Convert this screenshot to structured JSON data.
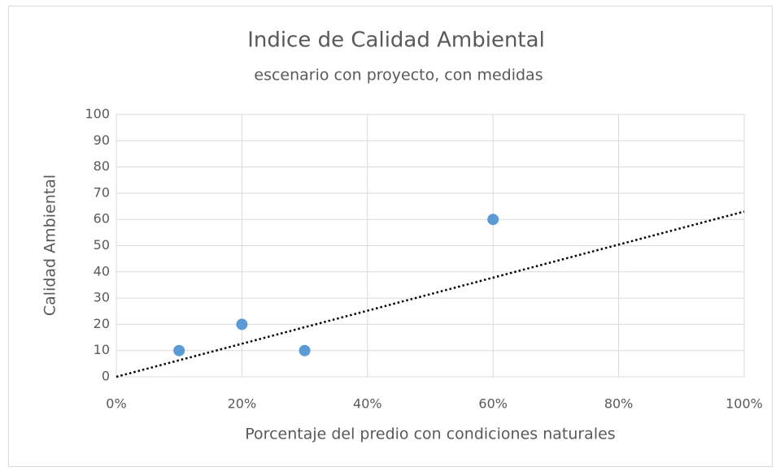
{
  "chart_data": {
    "type": "scatter",
    "title": "Indice de Calidad Ambiental",
    "subtitle": "escenario con proyecto, con medidas",
    "x_label": "Porcentaje del predio con condiciones naturales",
    "y_label": "Calidad Ambiental",
    "series": [
      {
        "color": "#5b9bd5",
        "x": [
          10,
          20,
          30,
          60
        ],
        "values": [
          10,
          20,
          10,
          60
        ]
      }
    ],
    "trendline": {
      "color": "#000000",
      "style": "dotted",
      "x": [
        0,
        100
      ],
      "values": [
        0,
        63
      ]
    },
    "xlim": [
      0,
      100
    ],
    "xticks": [
      {
        "value": 0,
        "label": "0%"
      },
      {
        "value": 20,
        "label": "20%"
      },
      {
        "value": 40,
        "label": "40%"
      },
      {
        "value": 60,
        "label": "60%"
      },
      {
        "value": 80,
        "label": "80%"
      },
      {
        "value": 100,
        "label": "100%"
      }
    ],
    "ylim": [
      0,
      100
    ],
    "yticks": [
      0,
      10,
      20,
      30,
      40,
      50,
      60,
      70,
      80,
      90,
      100
    ],
    "grid": true
  }
}
